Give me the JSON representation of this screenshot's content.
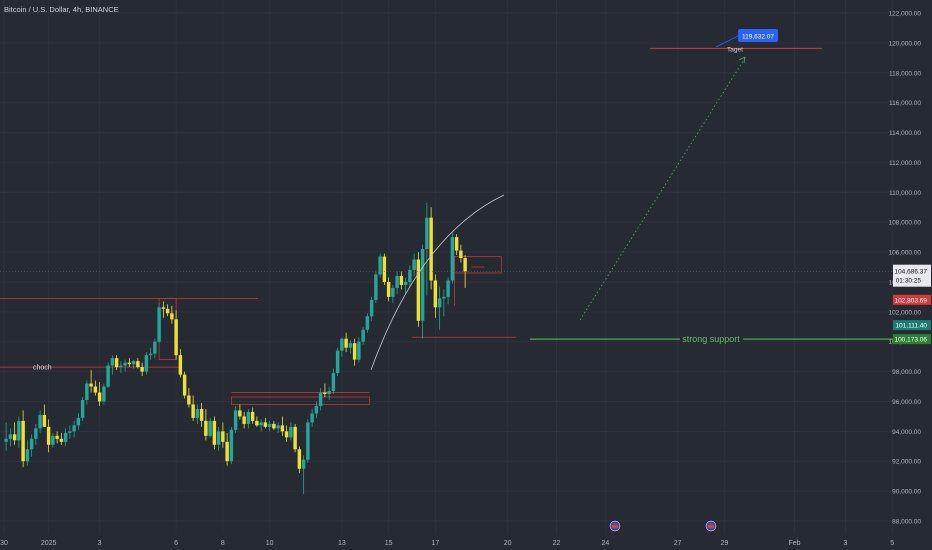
{
  "header": {
    "symbol_title": "Bitcoin / U.S. Dollar, 4h, BINANCE"
  },
  "colors": {
    "background": "#262a33",
    "up_candle": "#26a69a",
    "down_candle": "#f0e033",
    "level_line": "#d43a3a",
    "support_line": "#4caf50",
    "target_label": "#2962ff",
    "axis_text": "#b2b5be",
    "grid": "#2e323c"
  },
  "chart_data": {
    "type": "candlestick",
    "title": "",
    "y_axis": {
      "ylim": [
        87000,
        123000
      ],
      "ticks": [
        "88,000.00",
        "90,000.00",
        "92,000.00",
        "94,000.00",
        "96,000.00",
        "98,000.00",
        "100,000.00",
        "102,000.00",
        "104,000.00",
        "106,000.00",
        "108,000.00",
        "110,000.00",
        "112,000.00",
        "114,000.00",
        "116,000.00",
        "118,000.00",
        "120,000.00",
        "122,000.00"
      ],
      "tick_values": [
        88000,
        90000,
        92000,
        94000,
        96000,
        98000,
        100000,
        102000,
        104000,
        106000,
        108000,
        110000,
        112000,
        114000,
        116000,
        118000,
        120000,
        122000
      ]
    },
    "x_axis": {
      "tick_labels": [
        "30",
        "2025",
        "3",
        "6",
        "8",
        "10",
        "13",
        "15",
        "17",
        "20",
        "22",
        "24",
        "27",
        "29",
        "Feb",
        "3",
        "5"
      ],
      "tick_index": [
        0,
        10.5,
        22.5,
        40.5,
        51.5,
        62.5,
        79.5,
        90.5,
        101.5,
        118.5,
        130,
        141.5,
        158.5,
        169.5,
        186,
        198,
        209
      ],
      "total_slots": 211
    },
    "candles": [
      {
        "o": 93300,
        "h": 94600,
        "l": 92700,
        "c": 93500
      },
      {
        "o": 93500,
        "h": 94200,
        "l": 93000,
        "c": 93800
      },
      {
        "o": 93800,
        "h": 94600,
        "l": 93100,
        "c": 93400
      },
      {
        "o": 93400,
        "h": 95000,
        "l": 92900,
        "c": 94700
      },
      {
        "o": 94700,
        "h": 95400,
        "l": 91600,
        "c": 92000
      },
      {
        "o": 92000,
        "h": 93400,
        "l": 91700,
        "c": 92800
      },
      {
        "o": 92800,
        "h": 93800,
        "l": 92300,
        "c": 93500
      },
      {
        "o": 93500,
        "h": 94500,
        "l": 93100,
        "c": 94200
      },
      {
        "o": 94200,
        "h": 95400,
        "l": 93900,
        "c": 95100
      },
      {
        "o": 95100,
        "h": 95800,
        "l": 94300,
        "c": 94300
      },
      {
        "o": 94300,
        "h": 94800,
        "l": 92600,
        "c": 93100
      },
      {
        "o": 93100,
        "h": 93900,
        "l": 92900,
        "c": 93700
      },
      {
        "o": 93700,
        "h": 94000,
        "l": 93200,
        "c": 93500
      },
      {
        "o": 93500,
        "h": 93900,
        "l": 93100,
        "c": 93300
      },
      {
        "o": 93300,
        "h": 94200,
        "l": 93000,
        "c": 93900
      },
      {
        "o": 93900,
        "h": 94400,
        "l": 93500,
        "c": 94000
      },
      {
        "o": 94000,
        "h": 94700,
        "l": 93600,
        "c": 94400
      },
      {
        "o": 94400,
        "h": 95200,
        "l": 94100,
        "c": 94900
      },
      {
        "o": 94900,
        "h": 96300,
        "l": 94700,
        "c": 96100
      },
      {
        "o": 96100,
        "h": 97400,
        "l": 95800,
        "c": 97200
      },
      {
        "o": 97200,
        "h": 98100,
        "l": 96600,
        "c": 97000
      },
      {
        "o": 97000,
        "h": 97400,
        "l": 96400,
        "c": 96600
      },
      {
        "o": 96600,
        "h": 97300,
        "l": 95700,
        "c": 96000
      },
      {
        "o": 96000,
        "h": 97200,
        "l": 95800,
        "c": 97000
      },
      {
        "o": 97000,
        "h": 98600,
        "l": 96900,
        "c": 98400
      },
      {
        "o": 98400,
        "h": 99100,
        "l": 97800,
        "c": 98900
      },
      {
        "o": 98900,
        "h": 99100,
        "l": 98100,
        "c": 98300
      },
      {
        "o": 98300,
        "h": 98700,
        "l": 97900,
        "c": 98400
      },
      {
        "o": 98400,
        "h": 98800,
        "l": 98000,
        "c": 98600
      },
      {
        "o": 98600,
        "h": 98900,
        "l": 98300,
        "c": 98500
      },
      {
        "o": 98500,
        "h": 98800,
        "l": 98200,
        "c": 98700
      },
      {
        "o": 98700,
        "h": 98900,
        "l": 98200,
        "c": 98300
      },
      {
        "o": 98300,
        "h": 98600,
        "l": 97700,
        "c": 98000
      },
      {
        "o": 98000,
        "h": 99300,
        "l": 97800,
        "c": 99100
      },
      {
        "o": 99100,
        "h": 99600,
        "l": 98800,
        "c": 99200
      },
      {
        "o": 99200,
        "h": 100200,
        "l": 98900,
        "c": 100000
      },
      {
        "o": 100000,
        "h": 102600,
        "l": 99900,
        "c": 102300
      },
      {
        "o": 102300,
        "h": 102700,
        "l": 101600,
        "c": 102200
      },
      {
        "o": 102200,
        "h": 102500,
        "l": 101700,
        "c": 101900
      },
      {
        "o": 101900,
        "h": 102400,
        "l": 101200,
        "c": 101500
      },
      {
        "o": 101500,
        "h": 102100,
        "l": 98800,
        "c": 99100
      },
      {
        "o": 99100,
        "h": 99500,
        "l": 97600,
        "c": 97800
      },
      {
        "o": 97800,
        "h": 98000,
        "l": 96200,
        "c": 96400
      },
      {
        "o": 96400,
        "h": 96900,
        "l": 95600,
        "c": 95800
      },
      {
        "o": 95800,
        "h": 96400,
        "l": 94700,
        "c": 94900
      },
      {
        "o": 94900,
        "h": 95800,
        "l": 94500,
        "c": 95500
      },
      {
        "o": 95500,
        "h": 95900,
        "l": 94300,
        "c": 94700
      },
      {
        "o": 94700,
        "h": 95500,
        "l": 93400,
        "c": 93700
      },
      {
        "o": 93700,
        "h": 94900,
        "l": 93600,
        "c": 94700
      },
      {
        "o": 94700,
        "h": 95000,
        "l": 92800,
        "c": 93100
      },
      {
        "o": 93100,
        "h": 94300,
        "l": 92700,
        "c": 94000
      },
      {
        "o": 94000,
        "h": 94600,
        "l": 92900,
        "c": 93300
      },
      {
        "o": 93300,
        "h": 93900,
        "l": 91700,
        "c": 92000
      },
      {
        "o": 92000,
        "h": 94300,
        "l": 91800,
        "c": 94100
      },
      {
        "o": 94100,
        "h": 95700,
        "l": 93900,
        "c": 95400
      },
      {
        "o": 95400,
        "h": 95800,
        "l": 94800,
        "c": 95000
      },
      {
        "o": 95000,
        "h": 95300,
        "l": 94200,
        "c": 94500
      },
      {
        "o": 94500,
        "h": 95500,
        "l": 94200,
        "c": 95300
      },
      {
        "o": 95300,
        "h": 95600,
        "l": 94500,
        "c": 94700
      },
      {
        "o": 94700,
        "h": 95000,
        "l": 94300,
        "c": 94400
      },
      {
        "o": 94400,
        "h": 94800,
        "l": 94000,
        "c": 94600
      },
      {
        "o": 94600,
        "h": 94900,
        "l": 94200,
        "c": 94300
      },
      {
        "o": 94300,
        "h": 94700,
        "l": 94000,
        "c": 94500
      },
      {
        "o": 94500,
        "h": 94700,
        "l": 94100,
        "c": 94200
      },
      {
        "o": 94200,
        "h": 94600,
        "l": 93900,
        "c": 94400
      },
      {
        "o": 94400,
        "h": 95000,
        "l": 93700,
        "c": 94000
      },
      {
        "o": 94000,
        "h": 94400,
        "l": 93300,
        "c": 93600
      },
      {
        "o": 93600,
        "h": 94600,
        "l": 93400,
        "c": 94300
      },
      {
        "o": 94300,
        "h": 94500,
        "l": 92600,
        "c": 92800
      },
      {
        "o": 92800,
        "h": 93000,
        "l": 91200,
        "c": 91500
      },
      {
        "o": 91500,
        "h": 92400,
        "l": 89800,
        "c": 92100
      },
      {
        "o": 92100,
        "h": 94800,
        "l": 91900,
        "c": 94600
      },
      {
        "o": 94600,
        "h": 95500,
        "l": 94300,
        "c": 95200
      },
      {
        "o": 95200,
        "h": 96000,
        "l": 94900,
        "c": 95700
      },
      {
        "o": 95700,
        "h": 96900,
        "l": 95400,
        "c": 96600
      },
      {
        "o": 96600,
        "h": 97200,
        "l": 96300,
        "c": 96500
      },
      {
        "o": 96500,
        "h": 97000,
        "l": 96100,
        "c": 96700
      },
      {
        "o": 96700,
        "h": 98200,
        "l": 96500,
        "c": 97900
      },
      {
        "o": 97900,
        "h": 99600,
        "l": 97700,
        "c": 99400
      },
      {
        "o": 99400,
        "h": 100300,
        "l": 99000,
        "c": 100200
      },
      {
        "o": 100200,
        "h": 100600,
        "l": 99300,
        "c": 99600
      },
      {
        "o": 99600,
        "h": 100100,
        "l": 99200,
        "c": 99900
      },
      {
        "o": 99900,
        "h": 100200,
        "l": 98400,
        "c": 98800
      },
      {
        "o": 98800,
        "h": 100300,
        "l": 98600,
        "c": 100000
      },
      {
        "o": 100000,
        "h": 101000,
        "l": 99800,
        "c": 100800
      },
      {
        "o": 100800,
        "h": 101900,
        "l": 100600,
        "c": 101700
      },
      {
        "o": 101700,
        "h": 103000,
        "l": 101400,
        "c": 102800
      },
      {
        "o": 102800,
        "h": 104700,
        "l": 102600,
        "c": 104500
      },
      {
        "o": 104500,
        "h": 105900,
        "l": 104300,
        "c": 105700
      },
      {
        "o": 105700,
        "h": 105900,
        "l": 103800,
        "c": 104000
      },
      {
        "o": 104000,
        "h": 104300,
        "l": 102700,
        "c": 103000
      },
      {
        "o": 103000,
        "h": 103800,
        "l": 102600,
        "c": 103600
      },
      {
        "o": 103600,
        "h": 104700,
        "l": 103200,
        "c": 104400
      },
      {
        "o": 104400,
        "h": 104700,
        "l": 103500,
        "c": 103800
      },
      {
        "o": 103800,
        "h": 104300,
        "l": 103200,
        "c": 104000
      },
      {
        "o": 104000,
        "h": 105100,
        "l": 103700,
        "c": 104800
      },
      {
        "o": 104800,
        "h": 105900,
        "l": 104400,
        "c": 105500
      },
      {
        "o": 105500,
        "h": 106000,
        "l": 101000,
        "c": 101400
      },
      {
        "o": 101400,
        "h": 106500,
        "l": 100200,
        "c": 106200
      },
      {
        "o": 106200,
        "h": 109300,
        "l": 103100,
        "c": 108300
      },
      {
        "o": 108300,
        "h": 109000,
        "l": 103500,
        "c": 104100
      },
      {
        "o": 104100,
        "h": 104500,
        "l": 101600,
        "c": 102300
      },
      {
        "o": 102300,
        "h": 103700,
        "l": 100800,
        "c": 102900
      },
      {
        "o": 102900,
        "h": 103500,
        "l": 101700,
        "c": 103000
      },
      {
        "o": 103000,
        "h": 104300,
        "l": 102500,
        "c": 104100
      },
      {
        "o": 104100,
        "h": 107300,
        "l": 103900,
        "c": 107000
      },
      {
        "o": 107000,
        "h": 107200,
        "l": 105800,
        "c": 106100
      },
      {
        "o": 106100,
        "h": 106500,
        "l": 105300,
        "c": 105600
      },
      {
        "o": 105600,
        "h": 105800,
        "l": 103600,
        "c": 104700
      }
    ],
    "current_price": {
      "value": "104,686.37",
      "countdown": "01:30:25"
    },
    "price_labels": [
      {
        "text": "102,803.69",
        "color": "#d43a3a",
        "value": 102803.69
      },
      {
        "text": "101,111.40",
        "color": "#1b7c74",
        "value": 101111.4
      },
      {
        "text": "100,173.06",
        "color": "#2e7d32",
        "value": 100173.06
      }
    ],
    "target": {
      "label": "Taget",
      "price_tag": "119,632.07",
      "value": 119632.07
    },
    "support": {
      "label": "strong support",
      "value": 100173.06
    },
    "choch": {
      "label": "choch",
      "value": 98300
    }
  }
}
